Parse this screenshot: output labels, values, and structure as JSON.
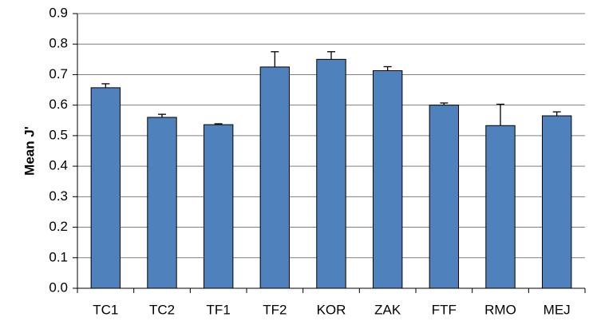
{
  "chart_data": {
    "type": "bar",
    "title": "",
    "xlabel": "",
    "ylabel": "Mean J'",
    "categories": [
      "TC1",
      "TC2",
      "TF1",
      "TF2",
      "KOR",
      "ZAK",
      "FTF",
      "RMO",
      "MEJ"
    ],
    "values": [
      0.657,
      0.56,
      0.536,
      0.725,
      0.75,
      0.713,
      0.6,
      0.533,
      0.565
    ],
    "error_plus": [
      0.013,
      0.01,
      0.003,
      0.05,
      0.025,
      0.013,
      0.007,
      0.07,
      0.013
    ],
    "ylim": [
      0,
      0.9
    ],
    "yticks": [
      "0.0",
      "0.1",
      "0.2",
      "0.3",
      "0.4",
      "0.5",
      "0.6",
      "0.7",
      "0.8",
      "0.9"
    ],
    "grid": true,
    "legend": "none",
    "colors": {
      "bar_fill": "#4f81bd",
      "bar_stroke": "#000000",
      "grid": "#7f7f7f",
      "axis": "#000000"
    }
  }
}
